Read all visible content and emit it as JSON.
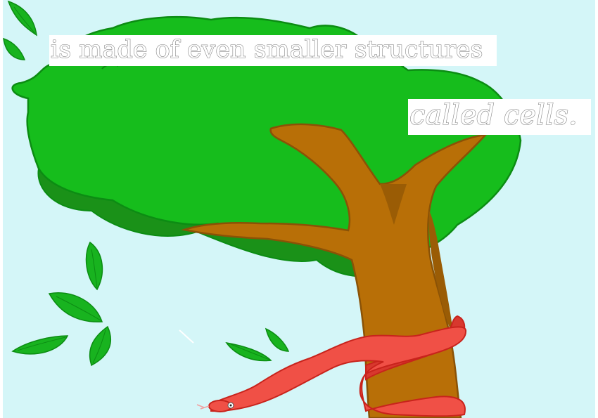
{
  "captions": {
    "line1": "is made of even smaller structures",
    "line2": "called cells."
  },
  "colors": {
    "sky": "#d4f6f8",
    "foliage": "#16bd1c",
    "foliage_shadow": "#1a9118",
    "foliage_outline": "#0c8c13",
    "trunk": "#b86f07",
    "trunk_outline": "#8a5206",
    "leaf": "#18b31f",
    "snake": "#f05046",
    "snake_outline": "#c8231c"
  },
  "icons": {
    "tree": "tree-illustration",
    "snake": "snake-illustration",
    "leaves": "falling-leaf"
  }
}
